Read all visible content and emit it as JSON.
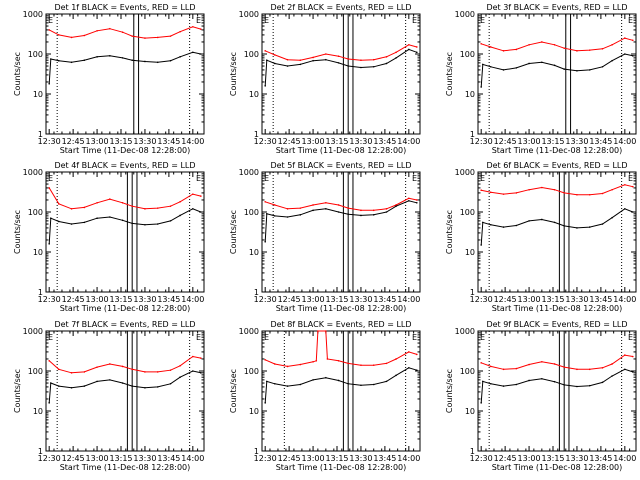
{
  "colors": {
    "events": "#000000",
    "lld": "#ff0000",
    "axes": "#000000",
    "background": "#ffffff"
  },
  "xlabel": "Start Time (11-Dec-08 12:28:00)",
  "ylabel": "Counts/sec",
  "x_ticks": [
    "12:30",
    "12:45",
    "13:00",
    "13:15",
    "13:30",
    "13:45",
    "14:00"
  ],
  "y_ticks": [
    "1",
    "10",
    "100",
    "1000"
  ],
  "chart_data": [
    {
      "type": "line",
      "title": "Det 1f BLACK = Events, RED = LLD",
      "marker": "E",
      "yscale": "log",
      "ylim": [
        1,
        1000
      ],
      "xlim": [
        "12:28",
        "14:07"
      ],
      "dotted_lines": [
        "12:35",
        "13:58"
      ],
      "solid_lines": [
        "13:23",
        "13:26"
      ],
      "series": [
        {
          "role": "lld",
          "x": [
            "12:30",
            "12:36",
            "12:44",
            "12:52",
            "13:00",
            "13:08",
            "13:16",
            "13:22",
            "13:30",
            "13:38",
            "13:46",
            "13:52",
            "14:00",
            "14:05"
          ],
          "y": [
            400,
            300,
            260,
            290,
            380,
            430,
            350,
            280,
            250,
            260,
            280,
            360,
            480,
            420
          ]
        },
        {
          "role": "events",
          "x": [
            "12:30",
            "12:31",
            "12:36",
            "12:44",
            "12:52",
            "13:00",
            "13:08",
            "13:16",
            "13:22",
            "13:30",
            "13:38",
            "13:46",
            "13:52",
            "14:00",
            "14:05"
          ],
          "y": [
            18,
            75,
            68,
            62,
            70,
            85,
            90,
            80,
            70,
            65,
            62,
            68,
            85,
            110,
            100
          ]
        }
      ]
    },
    {
      "type": "line",
      "title": "Det 2f BLACK = Events, RED = LLD",
      "marker": "E",
      "yscale": "log",
      "ylim": [
        1,
        1000
      ],
      "xlim": [
        "12:28",
        "14:07"
      ],
      "dotted_lines": [
        "12:35",
        "13:58"
      ],
      "solid_lines": [
        "13:19",
        "13:22",
        "13:25"
      ],
      "series": [
        {
          "role": "lld",
          "x": [
            "12:30",
            "12:36",
            "12:44",
            "12:52",
            "13:00",
            "13:08",
            "13:16",
            "13:22",
            "13:30",
            "13:38",
            "13:46",
            "13:52",
            "14:00",
            "14:05"
          ],
          "y": [
            120,
            95,
            72,
            70,
            82,
            100,
            88,
            75,
            70,
            72,
            85,
            110,
            170,
            150
          ]
        },
        {
          "role": "events",
          "x": [
            "12:30",
            "12:31",
            "12:36",
            "12:44",
            "12:52",
            "13:00",
            "13:08",
            "13:16",
            "13:22",
            "13:30",
            "13:38",
            "13:46",
            "13:52",
            "14:00",
            "14:05"
          ],
          "y": [
            16,
            70,
            58,
            50,
            55,
            68,
            72,
            60,
            50,
            46,
            48,
            58,
            80,
            130,
            110
          ]
        }
      ]
    },
    {
      "type": "line",
      "title": "Det 3f BLACK = Events, RED = LLD",
      "marker": "E",
      "yscale": "log",
      "ylim": [
        1,
        1000
      ],
      "xlim": [
        "12:28",
        "14:07"
      ],
      "dotted_lines": [
        "12:35",
        "13:58"
      ],
      "solid_lines": [
        "13:23",
        "13:26"
      ],
      "series": [
        {
          "role": "lld",
          "x": [
            "12:30",
            "12:36",
            "12:44",
            "12:52",
            "13:00",
            "13:08",
            "13:16",
            "13:22",
            "13:30",
            "13:38",
            "13:46",
            "13:52",
            "14:00",
            "14:05"
          ],
          "y": [
            180,
            150,
            120,
            130,
            170,
            200,
            170,
            140,
            120,
            125,
            135,
            170,
            250,
            220
          ]
        },
        {
          "role": "events",
          "x": [
            "12:30",
            "12:31",
            "12:36",
            "12:44",
            "12:52",
            "13:00",
            "13:08",
            "13:16",
            "13:22",
            "13:30",
            "13:38",
            "13:46",
            "13:52",
            "14:00",
            "14:05"
          ],
          "y": [
            15,
            55,
            48,
            40,
            45,
            58,
            62,
            52,
            42,
            38,
            40,
            48,
            68,
            100,
            90
          ]
        }
      ]
    },
    {
      "type": "line",
      "title": "Det 4f BLACK = Events, RED = LLD",
      "marker": "E",
      "yscale": "log",
      "ylim": [
        1,
        1000
      ],
      "xlim": [
        "12:28",
        "14:07"
      ],
      "dotted_lines": [
        "12:35",
        "13:58"
      ],
      "solid_lines": [
        "13:19",
        "13:22",
        "13:25"
      ],
      "series": [
        {
          "role": "lld",
          "x": [
            "12:30",
            "12:36",
            "12:44",
            "12:52",
            "13:00",
            "13:08",
            "13:16",
            "13:22",
            "13:30",
            "13:38",
            "13:46",
            "13:52",
            "14:00",
            "14:05"
          ],
          "y": [
            400,
            160,
            120,
            130,
            170,
            210,
            170,
            140,
            120,
            125,
            140,
            180,
            280,
            250
          ]
        },
        {
          "role": "events",
          "x": [
            "12:30",
            "12:31",
            "12:36",
            "12:44",
            "12:52",
            "13:00",
            "13:08",
            "13:16",
            "13:22",
            "13:30",
            "13:38",
            "13:46",
            "13:52",
            "14:00",
            "14:05"
          ],
          "y": [
            16,
            70,
            58,
            50,
            55,
            70,
            75,
            62,
            52,
            48,
            50,
            60,
            82,
            120,
            100
          ]
        }
      ]
    },
    {
      "type": "line",
      "title": "Det 5f BLACK = Events, RED = LLD",
      "marker": "E",
      "yscale": "log",
      "ylim": [
        1,
        1000
      ],
      "xlim": [
        "12:28",
        "14:07"
      ],
      "dotted_lines": [
        "12:35",
        "13:58"
      ],
      "solid_lines": [
        "13:19",
        "13:22",
        "13:25"
      ],
      "series": [
        {
          "role": "lld",
          "x": [
            "12:30",
            "12:36",
            "12:44",
            "12:52",
            "13:00",
            "13:08",
            "13:16",
            "13:22",
            "13:30",
            "13:38",
            "13:46",
            "13:52",
            "14:00",
            "14:05"
          ],
          "y": [
            180,
            150,
            120,
            125,
            150,
            170,
            150,
            125,
            110,
            110,
            120,
            150,
            220,
            200
          ]
        },
        {
          "role": "events",
          "x": [
            "12:30",
            "12:31",
            "12:36",
            "12:44",
            "12:52",
            "13:00",
            "13:08",
            "13:16",
            "13:22",
            "13:30",
            "13:38",
            "13:46",
            "13:52",
            "14:00",
            "14:05"
          ],
          "y": [
            18,
            90,
            80,
            75,
            85,
            110,
            120,
            100,
            88,
            82,
            85,
            100,
            140,
            190,
            170
          ]
        }
      ]
    },
    {
      "type": "line",
      "title": "Det 6f BLACK = Events, RED = LLD",
      "marker": "E",
      "yscale": "log",
      "ylim": [
        1,
        1000
      ],
      "xlim": [
        "12:28",
        "14:07"
      ],
      "dotted_lines": [
        "12:35",
        "13:58"
      ],
      "solid_lines": [
        "13:19",
        "13:22",
        "13:25"
      ],
      "series": [
        {
          "role": "lld",
          "x": [
            "12:30",
            "12:36",
            "12:44",
            "12:52",
            "13:00",
            "13:08",
            "13:16",
            "13:22",
            "13:30",
            "13:38",
            "13:46",
            "13:52",
            "14:00",
            "14:05"
          ],
          "y": [
            350,
            310,
            280,
            300,
            360,
            410,
            360,
            300,
            270,
            270,
            290,
            360,
            480,
            430
          ]
        },
        {
          "role": "events",
          "x": [
            "12:30",
            "12:31",
            "12:36",
            "12:44",
            "12:52",
            "13:00",
            "13:08",
            "13:16",
            "13:22",
            "13:30",
            "13:38",
            "13:46",
            "13:52",
            "14:00",
            "14:05"
          ],
          "y": [
            15,
            55,
            48,
            42,
            46,
            60,
            65,
            55,
            45,
            40,
            42,
            50,
            72,
            120,
            100
          ]
        }
      ]
    },
    {
      "type": "line",
      "title": "Det 7f BLACK = Events, RED = LLD",
      "marker": "E",
      "yscale": "log",
      "ylim": [
        1,
        1000
      ],
      "xlim": [
        "12:28",
        "14:07"
      ],
      "dotted_lines": [
        "12:35",
        "13:58"
      ],
      "solid_lines": [
        "13:19",
        "13:22",
        "13:25"
      ],
      "series": [
        {
          "role": "lld",
          "x": [
            "12:30",
            "12:36",
            "12:44",
            "12:52",
            "13:00",
            "13:08",
            "13:16",
            "13:22",
            "13:30",
            "13:38",
            "13:46",
            "13:52",
            "14:00",
            "14:05"
          ],
          "y": [
            180,
            110,
            90,
            95,
            125,
            150,
            130,
            110,
            95,
            95,
            105,
            135,
            230,
            210
          ]
        },
        {
          "role": "events",
          "x": [
            "12:30",
            "12:31",
            "12:36",
            "12:44",
            "12:52",
            "13:00",
            "13:08",
            "13:16",
            "13:22",
            "13:30",
            "13:38",
            "13:46",
            "13:52",
            "14:00",
            "14:05"
          ],
          "y": [
            16,
            50,
            42,
            38,
            42,
            55,
            60,
            50,
            42,
            38,
            40,
            48,
            70,
            100,
            90
          ]
        }
      ]
    },
    {
      "type": "line",
      "title": "Det 8f BLACK = Events, RED = LLD",
      "marker": "E",
      "yscale": "log",
      "ylim": [
        1,
        1000
      ],
      "xlim": [
        "12:28",
        "14:07"
      ],
      "dotted_lines": [
        "12:42",
        "13:58"
      ],
      "solid_lines": [
        "13:19",
        "13:22",
        "13:25"
      ],
      "series": [
        {
          "role": "lld",
          "x": [
            "12:30",
            "12:36",
            "12:44",
            "12:52",
            "13:00",
            "13:02",
            "13:03",
            "13:08",
            "13:09",
            "13:16",
            "13:22",
            "13:30",
            "13:38",
            "13:46",
            "13:52",
            "14:00",
            "14:05"
          ],
          "y": [
            190,
            150,
            130,
            145,
            170,
            180,
            1000,
            1000,
            200,
            180,
            155,
            140,
            140,
            155,
            200,
            300,
            260
          ]
        },
        {
          "role": "events",
          "x": [
            "12:30",
            "12:31",
            "12:36",
            "12:44",
            "12:52",
            "13:00",
            "13:08",
            "13:16",
            "13:22",
            "13:30",
            "13:38",
            "13:46",
            "13:52",
            "14:00",
            "14:05"
          ],
          "y": [
            16,
            55,
            48,
            42,
            46,
            60,
            68,
            58,
            48,
            44,
            46,
            55,
            78,
            120,
            105
          ]
        }
      ]
    },
    {
      "type": "line",
      "title": "Det 9f BLACK = Events, RED = LLD",
      "marker": "E",
      "yscale": "log",
      "ylim": [
        1,
        1000
      ],
      "xlim": [
        "12:28",
        "14:07"
      ],
      "dotted_lines": [
        "12:35",
        "13:58"
      ],
      "solid_lines": [
        "13:19",
        "13:22",
        "13:25"
      ],
      "series": [
        {
          "role": "lld",
          "x": [
            "12:30",
            "12:36",
            "12:44",
            "12:52",
            "13:00",
            "13:08",
            "13:16",
            "13:22",
            "13:30",
            "13:38",
            "13:46",
            "13:52",
            "14:00",
            "14:05"
          ],
          "y": [
            160,
            130,
            110,
            115,
            145,
            170,
            150,
            125,
            110,
            110,
            120,
            150,
            250,
            230
          ]
        },
        {
          "role": "events",
          "x": [
            "12:30",
            "12:31",
            "12:36",
            "12:44",
            "12:52",
            "13:00",
            "13:08",
            "13:16",
            "13:22",
            "13:30",
            "13:38",
            "13:46",
            "13:52",
            "14:00",
            "14:05"
          ],
          "y": [
            16,
            55,
            48,
            42,
            46,
            58,
            64,
            54,
            45,
            41,
            43,
            52,
            75,
            110,
            95
          ]
        }
      ]
    }
  ]
}
